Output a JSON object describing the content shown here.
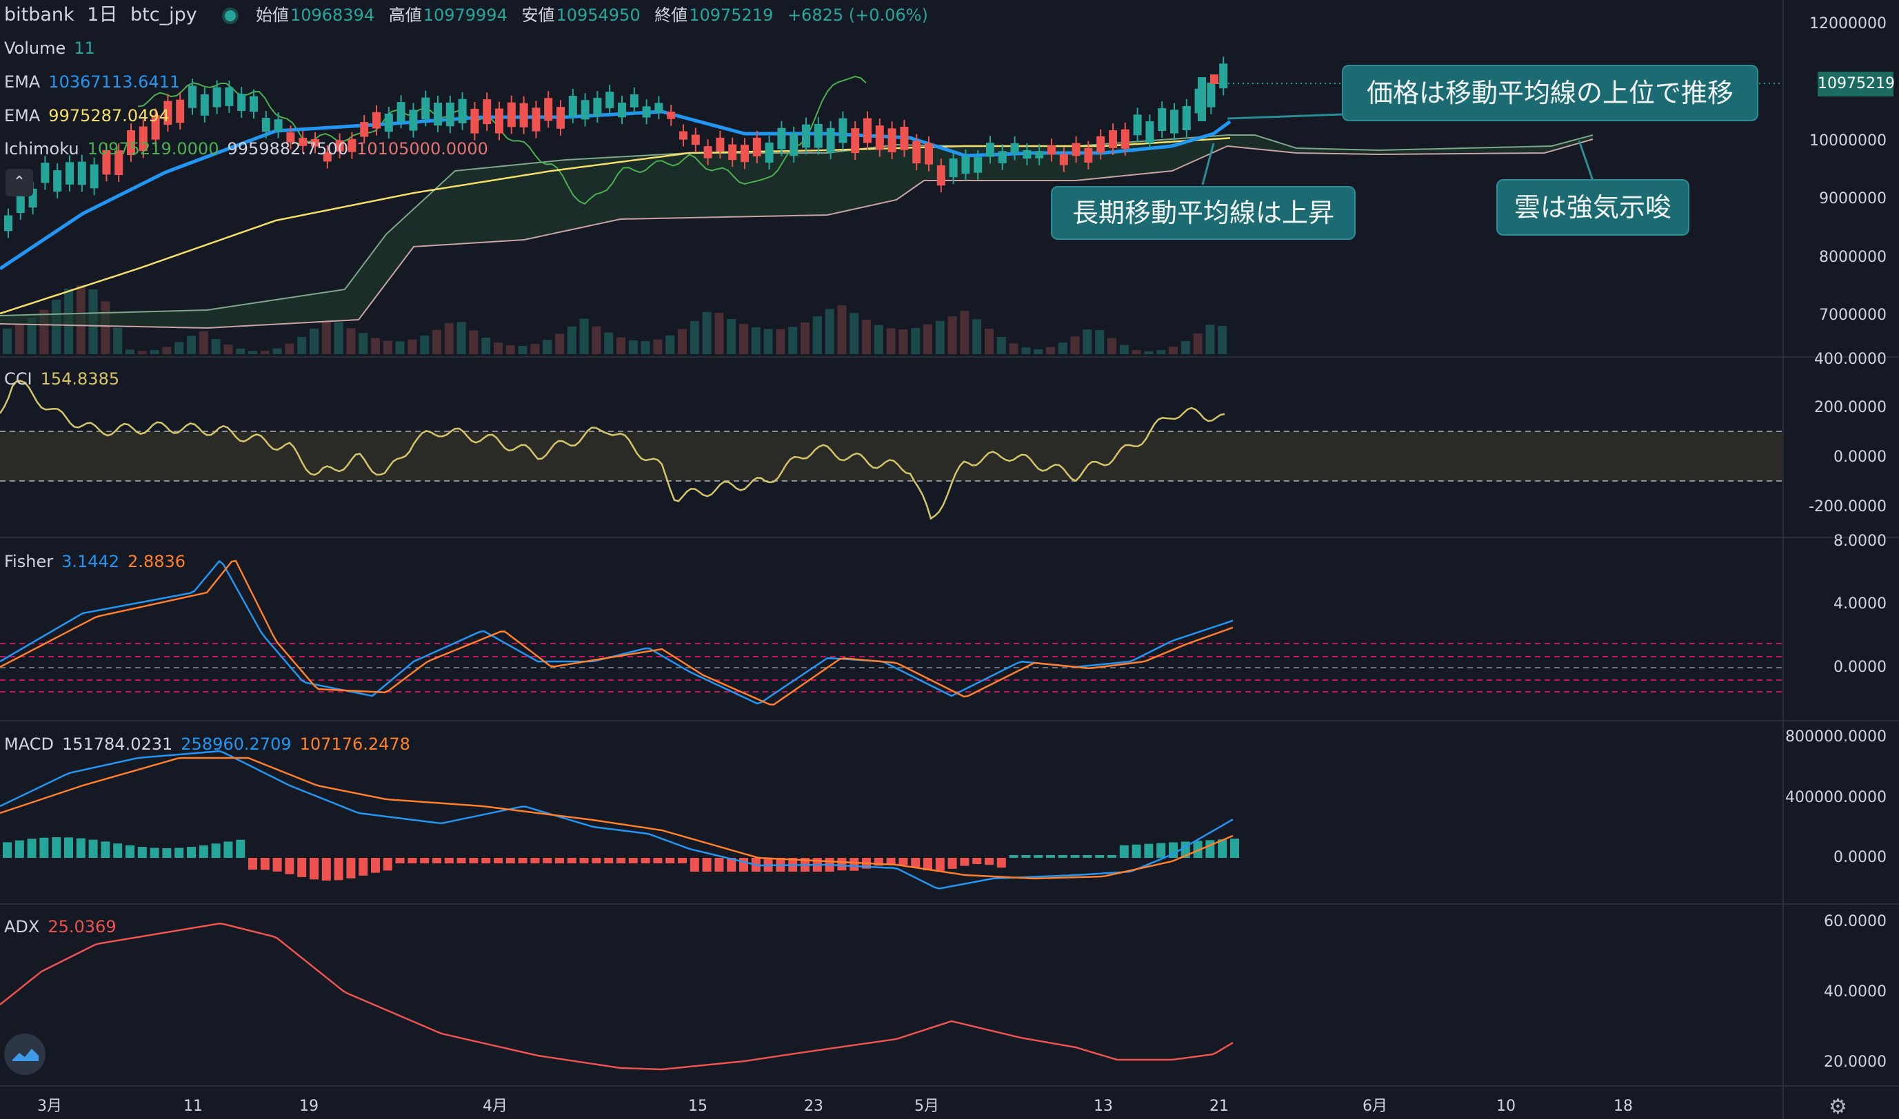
{
  "header": {
    "exchange": "bitbank",
    "interval": "1日",
    "symbol": "btc_jpy",
    "open_label": "始値",
    "open": "10968394",
    "high_label": "高値",
    "high": "10979994",
    "low_label": "安値",
    "low": "10954950",
    "close_label": "終値",
    "close": "10975219",
    "change": "+6825 (+0.06%)"
  },
  "indicators": {
    "volume": {
      "name": "Volume",
      "value": "11"
    },
    "ema1": {
      "name": "EMA",
      "value": "10367113.6411"
    },
    "ema2": {
      "name": "EMA",
      "value": "9975287.0494"
    },
    "ichimoku": {
      "name": "Ichimoku",
      "v1": "10975219.0000",
      "v2": "9959882.7500",
      "v3": "10105000.0000"
    },
    "cci": {
      "name": "CCI",
      "value": "154.8385"
    },
    "fisher": {
      "name": "Fisher",
      "v1": "3.1442",
      "v2": "2.8836"
    },
    "macd": {
      "name": "MACD",
      "v1": "151784.0231",
      "v2": "258960.2709",
      "v3": "107176.2478"
    },
    "adx": {
      "name": "ADX",
      "value": "25.0369"
    }
  },
  "price_axis": {
    "main": [
      "12000000",
      "10000000",
      "9000000",
      "8000000",
      "7000000"
    ],
    "last_price_tag": "10975219",
    "cci": [
      "400.0000",
      "200.0000",
      "0.0000",
      "-200.0000"
    ],
    "fisher": [
      "8.0000",
      "4.0000",
      "0.0000"
    ],
    "macd": [
      "800000.0000",
      "400000.0000",
      "0.0000"
    ],
    "adx": [
      "60.0000",
      "40.0000",
      "20.0000"
    ]
  },
  "time_axis": [
    "3月",
    "11",
    "19",
    "4月",
    "15",
    "23",
    "5月",
    "13",
    "21",
    "6月",
    "10",
    "18"
  ],
  "callouts": {
    "price_above_ma": "価格は移動平均線の上位で推移",
    "long_ma_rising": "長期移動平均線は上昇",
    "cloud_bullish": "雲は強気示唆"
  },
  "icons": {
    "collapse": "chevron-up-icon",
    "logo": "tradingview-logo-icon",
    "settings": "gear-icon"
  },
  "colors": {
    "background": "#151924",
    "up": "#26a69a",
    "down": "#ef5350",
    "ema_fast": "#2196f3",
    "ema_slow": "#f5e06a",
    "cci": "#d4c56a",
    "fisher_fast": "#2196f3",
    "fisher_slow": "#ff7f2a",
    "adx": "#ef5350",
    "callout": "#1c6b73"
  }
}
